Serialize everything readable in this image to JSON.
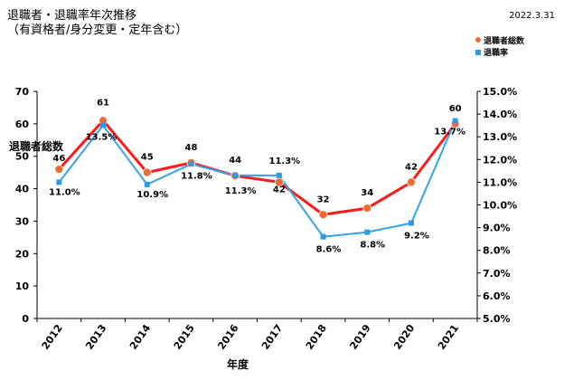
{
  "header": {
    "title": "退職者・退職率年次推移",
    "subtitle": "（有資格者/身分変更・定年含む）",
    "date": "2022.3.31"
  },
  "chart_data": {
    "type": "line",
    "categories": [
      "2012",
      "2013",
      "2014",
      "2015",
      "2016",
      "2017",
      "2018",
      "2019",
      "2020",
      "2021"
    ],
    "xlabel": "年度",
    "ylabel": "退職者総数",
    "ylim": [
      0,
      70
    ],
    "y2lim": [
      5.0,
      15.0
    ],
    "y_ticks": [
      "0",
      "10",
      "20",
      "30",
      "40",
      "50",
      "60",
      "70"
    ],
    "y2_ticks": [
      "5.0%",
      "6.0%",
      "7.0%",
      "8.0%",
      "9.0%",
      "10.0%",
      "11.0%",
      "12.0%",
      "13.0%",
      "14.0%",
      "15.0%"
    ],
    "grid": false,
    "legend_position": "top-right",
    "series": [
      {
        "name": "退職者総数",
        "axis": "left",
        "color": "#ff1a1a",
        "marker_color": "#f06a33",
        "values": [
          46,
          61,
          45,
          48,
          44,
          42,
          32,
          34,
          42,
          60
        ],
        "labels": [
          "46",
          "61",
          "45",
          "48",
          "44",
          "42",
          "32",
          "34",
          "42",
          "60"
        ]
      },
      {
        "name": "退職率",
        "axis": "right",
        "color": "#33a3e8",
        "marker_color": "#2a9ce6",
        "values": [
          11.0,
          13.5,
          10.9,
          11.8,
          11.3,
          11.3,
          8.6,
          8.8,
          9.2,
          13.7
        ],
        "labels": [
          "11.0%",
          "13.5%",
          "10.9%",
          "11.8%",
          "11.3%",
          "11.3%",
          "8.6%",
          "8.8%",
          "9.2%",
          "13.7%"
        ]
      }
    ]
  }
}
